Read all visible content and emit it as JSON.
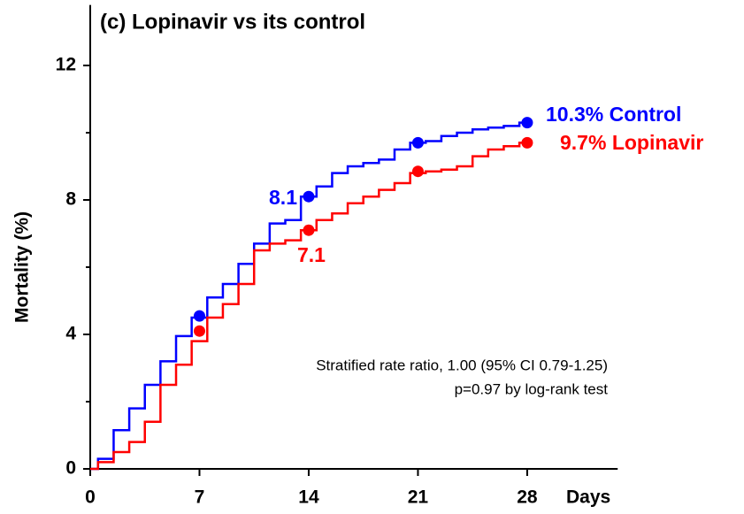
{
  "chart_data": {
    "type": "step",
    "title": "(c) Lopinavir vs its control",
    "ylabel": "Mortality (%)",
    "xlabel": "Days",
    "xlim": [
      0,
      33.8
    ],
    "xticks": [
      0,
      7,
      14,
      21,
      28
    ],
    "ylim": [
      0,
      13.8
    ],
    "yticks": [
      0,
      4,
      8,
      12
    ],
    "yminorticks": [
      2,
      6,
      10
    ],
    "series": [
      {
        "name": "Control",
        "color": "#0000ff",
        "x": [
          0,
          0.5,
          1.5,
          2.5,
          3.5,
          4.5,
          5.5,
          6.5,
          7.5,
          8.5,
          9.5,
          10.5,
          11.5,
          12.5,
          13.5,
          14.5,
          15.5,
          16.5,
          17.5,
          18.5,
          19.5,
          20.5,
          21.5,
          22.5,
          23.5,
          24.5,
          25.5,
          26.5,
          27.5,
          28
        ],
        "values": [
          0,
          0.3,
          1.15,
          1.8,
          2.5,
          3.2,
          3.95,
          4.5,
          5.1,
          5.5,
          6.1,
          6.7,
          7.3,
          7.4,
          8.1,
          8.4,
          8.8,
          9.0,
          9.1,
          9.2,
          9.5,
          9.7,
          9.75,
          9.9,
          10.0,
          10.1,
          10.15,
          10.2,
          10.3,
          10.3
        ],
        "points": {
          "x": [
            7,
            14,
            21,
            28
          ],
          "values": [
            4.55,
            8.1,
            9.7,
            10.3
          ]
        }
      },
      {
        "name": "Lopinavir",
        "color": "#ff0000",
        "x": [
          0,
          0.5,
          1.5,
          2.5,
          3.5,
          4.5,
          5.5,
          6.5,
          7.5,
          8.5,
          9.5,
          10.5,
          11.5,
          12.5,
          13.5,
          14.5,
          15.5,
          16.5,
          17.5,
          18.5,
          19.5,
          20.5,
          21.5,
          22.5,
          23.5,
          24.5,
          25.5,
          26.5,
          27.5,
          28
        ],
        "values": [
          0,
          0.2,
          0.5,
          0.8,
          1.4,
          2.5,
          3.1,
          3.8,
          4.5,
          4.9,
          5.5,
          6.5,
          6.7,
          6.8,
          7.1,
          7.4,
          7.6,
          7.9,
          8.1,
          8.3,
          8.5,
          8.8,
          8.85,
          8.9,
          9.0,
          9.3,
          9.5,
          9.6,
          9.7,
          9.7
        ],
        "points": {
          "x": [
            7,
            14,
            21,
            28
          ],
          "values": [
            4.1,
            7.1,
            8.85,
            9.7
          ]
        }
      }
    ],
    "annotations": [
      {
        "text": "10.3% Control",
        "color": "#0000ff"
      },
      {
        "text": "9.7% Lopinavir",
        "color": "#ff0000"
      },
      {
        "text": "8.1",
        "color": "#0000ff"
      },
      {
        "text": "7.1",
        "color": "#ff0000"
      },
      {
        "text": "Stratified rate ratio, 1.00 (95% CI 0.79-1.25)",
        "color": "#000000"
      },
      {
        "text": "p=0.97 by log-rank test",
        "color": "#000000"
      }
    ]
  }
}
